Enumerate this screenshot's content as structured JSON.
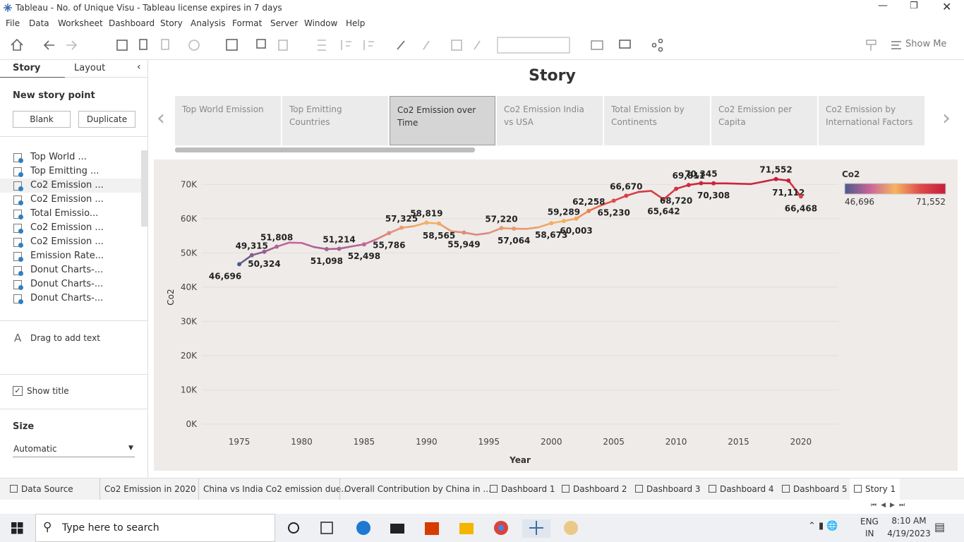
{
  "window": {
    "title": "Tableau - No. of Unique Visu - Tableau license expires in 7 days"
  },
  "menu": [
    "File",
    "Data",
    "Worksheet",
    "Dashboard",
    "Story",
    "Analysis",
    "Format",
    "Server",
    "Window",
    "Help"
  ],
  "toolbar": {
    "show_me": "Show Me"
  },
  "sidebar": {
    "tabs": [
      "Story",
      "Layout"
    ],
    "new_story_point": "New story point",
    "buttons": [
      "Blank",
      "Duplicate"
    ],
    "story_points": [
      "Top World ...",
      "Top Emitting ...",
      "Co2 Emission ...",
      "Co2 Emission ...",
      "Total Emissio...",
      "Co2 Emission ...",
      "Co2 Emission ...",
      "Emission Rate...",
      "Donut Charts-...",
      "Donut Charts-...",
      "Donut Charts-..."
    ],
    "active_point": 2,
    "drag_text": "Drag to add text",
    "show_title": "Show title",
    "size_label": "Size",
    "size_value": "Automatic"
  },
  "story": {
    "title": "Story",
    "points": [
      "Top World Emission",
      "Top Emitting Countries",
      "Co2 Emission over Time",
      "Co2 Emission India vs USA",
      "Total Emission by Continents",
      "Co2 Emission per Capita",
      "Co2 Emission by International Factors"
    ],
    "active_point": 2
  },
  "chart_data": {
    "type": "line",
    "x_label": "Year",
    "y_label": "Co2",
    "x": [
      1975,
      1976,
      1977,
      1978,
      1979,
      1980,
      1981,
      1982,
      1983,
      1984,
      1985,
      1986,
      1987,
      1988,
      1989,
      1990,
      1991,
      1992,
      1993,
      1994,
      1995,
      1996,
      1997,
      1998,
      1999,
      2000,
      2001,
      2002,
      2003,
      2004,
      2005,
      2006,
      2007,
      2008,
      2009,
      2010,
      2011,
      2012,
      2013,
      2014,
      2015,
      2016,
      2017,
      2018,
      2019,
      2020
    ],
    "values": [
      46696,
      49315,
      50324,
      51808,
      53000,
      52900,
      51700,
      51098,
      51214,
      51900,
      52498,
      54000,
      55786,
      57325,
      57800,
      58819,
      58565,
      56300,
      55949,
      55300,
      55800,
      57220,
      57064,
      57000,
      57500,
      58673,
      59289,
      60003,
      62258,
      63900,
      65230,
      66670,
      67800,
      68100,
      65642,
      68720,
      69811,
      70345,
      70308,
      70300,
      70200,
      70100,
      70800,
      71552,
      71112,
      66468
    ],
    "value_labels": [
      "46,696",
      "49,315",
      "50,324",
      "51,808",
      null,
      null,
      null,
      "51,098",
      "51,214",
      null,
      "52,498",
      null,
      "55,786",
      "57,325",
      null,
      "58,819",
      "58,565",
      null,
      "55,949",
      null,
      null,
      "57,220",
      "57,064",
      null,
      null,
      "58,673",
      "59,289",
      "60,003",
      "62,258",
      null,
      "65,230",
      "66,670",
      null,
      null,
      "65,642",
      "68,720",
      "69,811",
      "70,345",
      "70,308",
      null,
      null,
      null,
      null,
      "71,552",
      "71,112",
      "66,468"
    ],
    "xlim": [
      1972,
      2023
    ],
    "xticks": [
      1975,
      1980,
      1985,
      1990,
      1995,
      2000,
      2005,
      2010,
      2015,
      2020
    ],
    "ylim": [
      0,
      75000
    ],
    "yticks": [
      {
        "value": 0,
        "label": "0K"
      },
      {
        "value": 10000,
        "label": "10K"
      },
      {
        "value": 20000,
        "label": "20K"
      },
      {
        "value": 30000,
        "label": "30K"
      },
      {
        "value": 40000,
        "label": "40K"
      },
      {
        "value": 50000,
        "label": "50K"
      },
      {
        "value": 60000,
        "label": "60K"
      },
      {
        "value": 70000,
        "label": "70K"
      }
    ],
    "grid": true,
    "color_legend": {
      "title": "Co2",
      "colors": [
        "#4b5a8c",
        "#c8659a",
        "#f5b461",
        "#df4a4a",
        "#c41e3a"
      ],
      "min": {
        "value": 46696,
        "label": "46,696"
      },
      "max": {
        "value": 71552,
        "label": "71,552"
      }
    }
  },
  "sheet_tabs": [
    "Data Source",
    "Co2 Emission in 2020",
    "China vs India Co2 emission due...",
    "Overall Contribution by China in ...",
    "Dashboard 1",
    "Dashboard 2",
    "Dashboard 3",
    "Dashboard 4",
    "Dashboard 5",
    "Story 1"
  ],
  "active_tab": 9,
  "taskbar": {
    "search": "Type here to search",
    "language": "ENG",
    "region": "IN",
    "time": "8:10 AM",
    "date": "4/19/2023"
  }
}
